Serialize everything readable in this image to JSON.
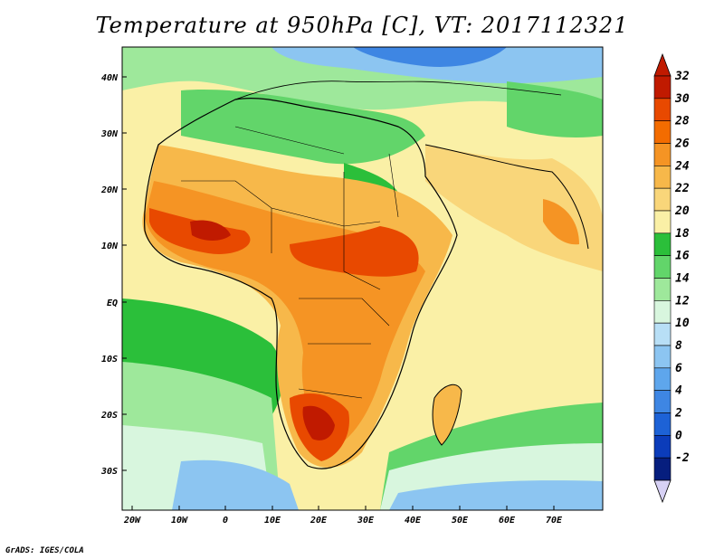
{
  "title": "Temperature at 950hPa [C], VT: 2017112321",
  "credit": "GrADS: IGES/COLA",
  "lat_labels": [
    "40N",
    "30N",
    "20N",
    "10N",
    "EQ",
    "10S",
    "20S",
    "30S"
  ],
  "lon_labels": [
    "20W",
    "10W",
    "0",
    "10E",
    "20E",
    "30E",
    "40E",
    "50E",
    "60E",
    "70E"
  ],
  "colorbar": {
    "labels": [
      "32",
      "30",
      "28",
      "26",
      "24",
      "22",
      "20",
      "18",
      "16",
      "14",
      "12",
      "10",
      "8",
      "6",
      "4",
      "2",
      "0",
      "-2"
    ],
    "colors": [
      "#c01a00",
      "#e84900",
      "#f36c00",
      "#f59424",
      "#f7b84a",
      "#f9d67a",
      "#faf0a6",
      "#2bbf3a",
      "#62d56a",
      "#9ee89b",
      "#d8f6de",
      "#b8dff6",
      "#8cc5f1",
      "#5ea6ec",
      "#3e86e3",
      "#1d62d6",
      "#0b3cba",
      "#061e7e"
    ],
    "top_arrow_color": "#c01a00",
    "bottom_arrow_color": "#d7d1f5"
  },
  "colors": {
    "ocean_cool": "#62d56a",
    "ocean_warm": "#faf0a6",
    "hot": "#e84900",
    "very_hot": "#c01a00",
    "cold_north": "#5ea6ec"
  }
}
